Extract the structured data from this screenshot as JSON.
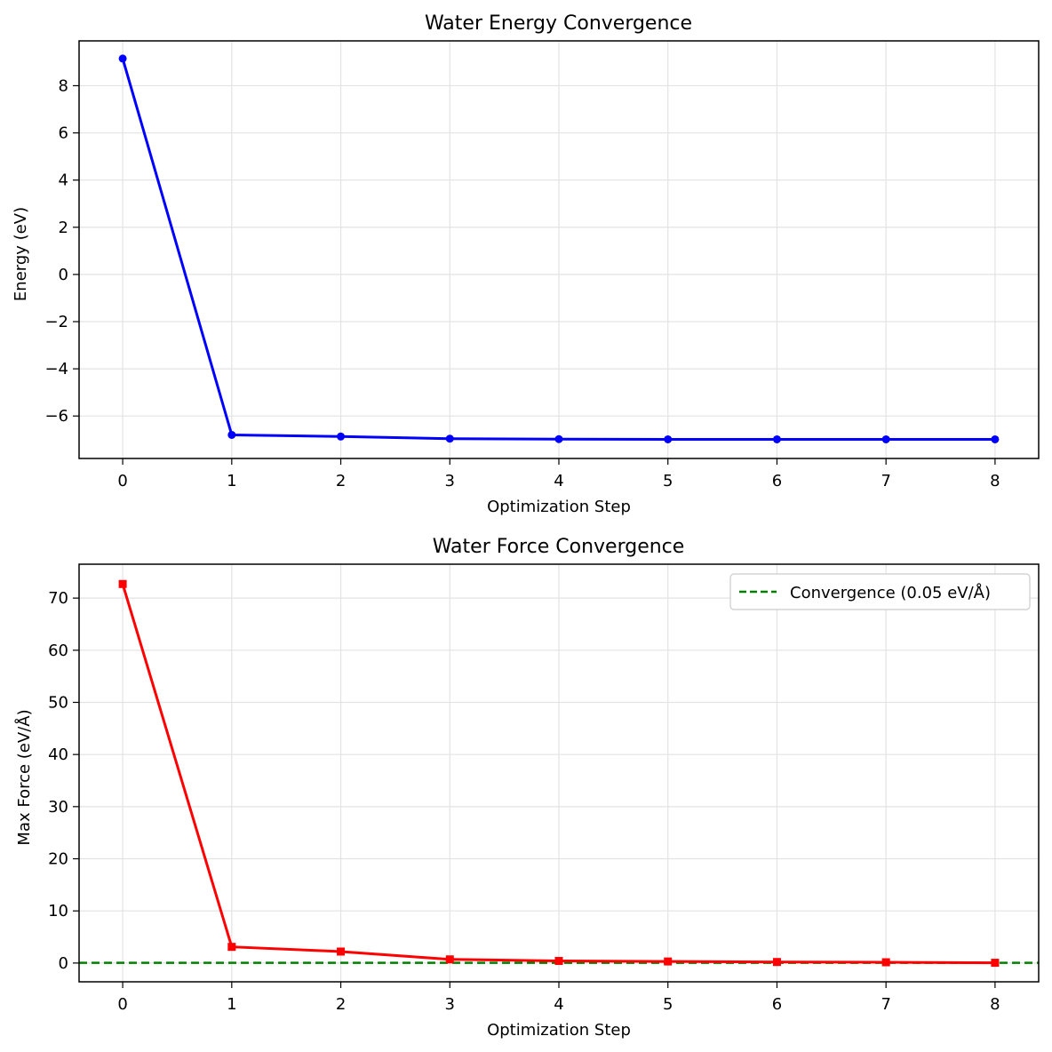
{
  "chart_data": [
    {
      "type": "line",
      "title": "Water Energy Convergence",
      "xlabel": "Optimization Step",
      "ylabel": "Energy (eV)",
      "xlim": [
        -0.4,
        8.4
      ],
      "ylim": [
        -7.8,
        9.9
      ],
      "xticks": [
        0,
        1,
        2,
        3,
        4,
        5,
        6,
        7,
        8
      ],
      "xtick_labels": [
        "0",
        "1",
        "2",
        "3",
        "4",
        "5",
        "6",
        "7",
        "8"
      ],
      "yticks": [
        8,
        6,
        4,
        2,
        0,
        -2,
        -4,
        -6
      ],
      "ytick_labels": [
        "8",
        "6",
        "4",
        "2",
        "0",
        "−2",
        "−4",
        "−6"
      ],
      "grid": true,
      "series": [
        {
          "name": "Energy",
          "color": "#0000ff",
          "marker": "circle",
          "x": [
            0,
            1,
            2,
            3,
            4,
            5,
            6,
            7,
            8
          ],
          "y": [
            9.15,
            -6.8,
            -6.87,
            -6.96,
            -6.98,
            -6.99,
            -6.99,
            -6.99,
            -6.99
          ]
        }
      ]
    },
    {
      "type": "line",
      "title": "Water Force Convergence",
      "xlabel": "Optimization Step",
      "ylabel": "Max Force (eV/Å)",
      "xlim": [
        -0.4,
        8.4
      ],
      "ylim": [
        -3.6,
        76.5
      ],
      "xticks": [
        0,
        1,
        2,
        3,
        4,
        5,
        6,
        7,
        8
      ],
      "xtick_labels": [
        "0",
        "1",
        "2",
        "3",
        "4",
        "5",
        "6",
        "7",
        "8"
      ],
      "yticks": [
        70,
        60,
        50,
        40,
        30,
        20,
        10,
        0
      ],
      "ytick_labels": [
        "70",
        "60",
        "50",
        "40",
        "30",
        "20",
        "10",
        "0"
      ],
      "grid": true,
      "legend": {
        "position": "top-right",
        "entries": [
          "Convergence (0.05 eV/Å)"
        ]
      },
      "series": [
        {
          "name": "Max Force",
          "color": "#ff0000",
          "marker": "square",
          "x": [
            0,
            1,
            2,
            3,
            4,
            5,
            6,
            7,
            8
          ],
          "y": [
            72.7,
            3.1,
            2.2,
            0.7,
            0.4,
            0.3,
            0.2,
            0.15,
            0.05
          ]
        }
      ],
      "reference_line": {
        "label": "Convergence (0.05 eV/Å)",
        "value": 0.05,
        "color": "#008000",
        "style": "dashed"
      }
    }
  ]
}
